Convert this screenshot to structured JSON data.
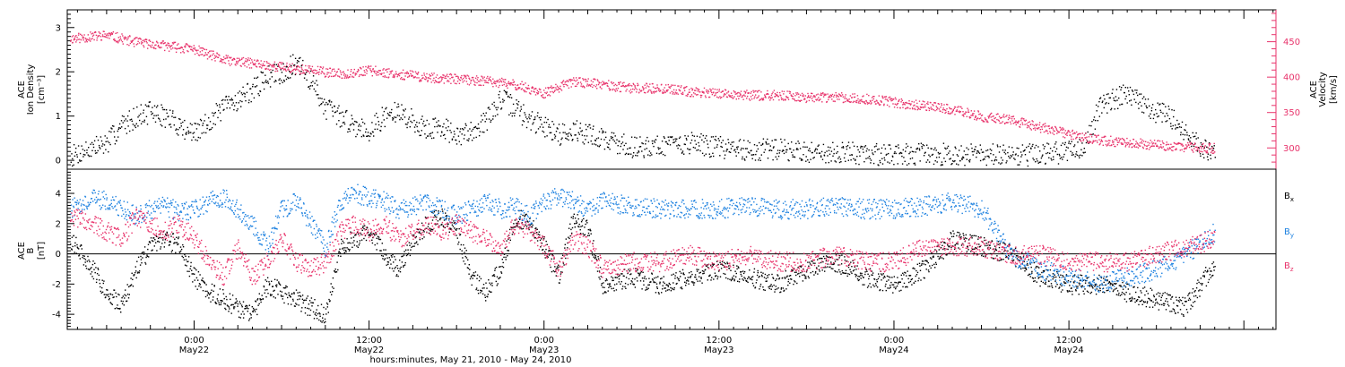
{
  "chart_data": [
    {
      "type": "scatter",
      "panel": "upper",
      "title": "",
      "left_axis": {
        "label_lines": [
          "ACE",
          "Ion Density"
        ],
        "unit": "[cm⁻³]",
        "ylim": [
          -0.2,
          3.4
        ],
        "ticks": [
          "0",
          "1",
          "2",
          "3"
        ],
        "color": "#000000"
      },
      "right_axis": {
        "label_lines": [
          "ACE",
          "Velocity"
        ],
        "unit": "[km/s]",
        "ylim": [
          270,
          495
        ],
        "ticks": [
          "300",
          "350",
          "400",
          "450"
        ],
        "color": "#e8336b"
      },
      "series": [
        {
          "axis": "left",
          "color": "#000000",
          "x": [
            -8.5,
            -7,
            -6,
            -5,
            -4,
            -3,
            -2,
            -1,
            0,
            1,
            2,
            3,
            4,
            5,
            6,
            7,
            8,
            9,
            10,
            11,
            12,
            13,
            14,
            15,
            16,
            17,
            18,
            19,
            20,
            21,
            22,
            23,
            24,
            25,
            26,
            27,
            28,
            30,
            32,
            34,
            36,
            38,
            40,
            42,
            44,
            46,
            48,
            50,
            52,
            54,
            56,
            58,
            60,
            61,
            62,
            63,
            64,
            65,
            66,
            67,
            68,
            69,
            70
          ],
          "values": [
            0.1,
            0.3,
            0.4,
            0.8,
            1.0,
            1.1,
            1.0,
            0.8,
            0.6,
            0.9,
            1.2,
            1.4,
            1.6,
            1.9,
            2.0,
            2.2,
            1.8,
            1.2,
            1.0,
            0.8,
            0.7,
            1.0,
            1.1,
            0.9,
            0.7,
            0.8,
            0.5,
            0.7,
            0.9,
            1.4,
            1.2,
            0.9,
            0.8,
            0.6,
            0.7,
            0.6,
            0.5,
            0.3,
            0.35,
            0.4,
            0.3,
            0.25,
            0.25,
            0.2,
            0.2,
            0.15,
            0.15,
            0.15,
            0.15,
            0.15,
            0.1,
            0.15,
            0.2,
            0.3,
            1.2,
            1.4,
            1.5,
            1.3,
            1.1,
            1.0,
            0.6,
            0.3,
            0.2
          ]
        },
        {
          "axis": "right",
          "color": "#e8336b",
          "x": [
            -8.5,
            -6,
            -4,
            -2,
            0,
            2,
            4,
            6,
            8,
            10,
            12,
            14,
            16,
            18,
            20,
            22,
            24,
            26,
            28,
            30,
            32,
            34,
            36,
            38,
            40,
            42,
            44,
            46,
            48,
            50,
            52,
            54,
            56,
            58,
            60,
            62,
            64,
            66,
            68,
            70
          ],
          "values": [
            455,
            460,
            450,
            445,
            440,
            425,
            420,
            415,
            410,
            405,
            410,
            405,
            400,
            398,
            395,
            390,
            378,
            395,
            390,
            385,
            385,
            380,
            378,
            375,
            375,
            372,
            372,
            370,
            365,
            360,
            355,
            345,
            340,
            330,
            320,
            312,
            308,
            305,
            302,
            300
          ]
        }
      ]
    },
    {
      "type": "scatter",
      "panel": "lower",
      "title": "",
      "left_axis": {
        "label_lines": [
          "ACE",
          "B"
        ],
        "unit": "[nT]",
        "ylim": [
          -5.0,
          5.6
        ],
        "ticks": [
          "-4",
          "-2",
          "0",
          "2",
          "4"
        ],
        "color": "#000000"
      },
      "legend_position": "right",
      "series": [
        {
          "name": "Bx",
          "label_main": "B",
          "label_sub": "x",
          "color": "#000000",
          "x": [
            -8.5,
            -7,
            -6,
            -5,
            -4,
            -3,
            -2,
            -1,
            0,
            1,
            2,
            3,
            4,
            5,
            6,
            7,
            8,
            9,
            10,
            11,
            12,
            13,
            14,
            15,
            16,
            17,
            18,
            19,
            20,
            21,
            22,
            23,
            24,
            25,
            26,
            27,
            28,
            30,
            32,
            34,
            36,
            38,
            40,
            42,
            44,
            46,
            48,
            50,
            52,
            54,
            56,
            58,
            60,
            62,
            64,
            66,
            68,
            70
          ],
          "values": [
            1.0,
            -1.0,
            -2.5,
            -3.5,
            -1.0,
            0.5,
            1.0,
            0.5,
            -1.5,
            -2.5,
            -3.0,
            -3.5,
            -4.0,
            -2.0,
            -2.5,
            -3.0,
            -3.5,
            -4.0,
            0.5,
            1.0,
            1.5,
            0.0,
            -1.0,
            1.0,
            2.0,
            2.5,
            1.5,
            -1.5,
            -2.5,
            -1.0,
            2.5,
            2.0,
            0.5,
            -1.5,
            2.5,
            1.5,
            -2.0,
            -1.5,
            -2.0,
            -1.5,
            -1.0,
            -1.5,
            -2.0,
            -1.0,
            -0.5,
            -1.5,
            -2.0,
            -1.0,
            1.0,
            0.5,
            0.0,
            -1.5,
            -2.0,
            -2.0,
            -2.5,
            -3.0,
            -3.5,
            -0.5
          ]
        },
        {
          "name": "By",
          "label_main": "B",
          "label_sub": "y",
          "color": "#1e82e0",
          "x": [
            -8.5,
            -7,
            -6,
            -5,
            -4,
            -3,
            -2,
            -1,
            0,
            1,
            2,
            3,
            4,
            5,
            6,
            7,
            8,
            9,
            10,
            11,
            12,
            13,
            14,
            15,
            16,
            17,
            18,
            19,
            20,
            21,
            22,
            23,
            24,
            25,
            26,
            27,
            28,
            30,
            32,
            34,
            36,
            38,
            40,
            42,
            44,
            46,
            48,
            50,
            52,
            54,
            56,
            58,
            60,
            62,
            64,
            66,
            68,
            70
          ],
          "values": [
            3.0,
            3.8,
            3.5,
            3.0,
            2.5,
            3.0,
            3.2,
            2.8,
            3.0,
            3.5,
            3.8,
            3.0,
            2.0,
            0.5,
            3.0,
            3.5,
            2.0,
            0.5,
            3.5,
            4.0,
            3.8,
            3.5,
            3.0,
            3.2,
            3.5,
            3.0,
            2.5,
            3.0,
            3.5,
            3.0,
            3.2,
            2.5,
            3.5,
            3.8,
            3.5,
            3.0,
            3.5,
            3.2,
            3.0,
            3.0,
            3.0,
            3.2,
            3.0,
            3.0,
            3.2,
            3.0,
            3.0,
            3.2,
            3.5,
            3.0,
            0.0,
            -1.0,
            -1.5,
            -2.0,
            -1.5,
            -1.0,
            0.0,
            1.5
          ]
        },
        {
          "name": "Bz",
          "label_main": "B",
          "label_sub": "z",
          "color": "#e8336b",
          "x": [
            -8.5,
            -7,
            -6,
            -5,
            -4,
            -3,
            -2,
            -1,
            0,
            1,
            2,
            3,
            4,
            5,
            6,
            7,
            8,
            9,
            10,
            11,
            12,
            13,
            14,
            15,
            16,
            17,
            18,
            19,
            20,
            21,
            22,
            23,
            24,
            25,
            26,
            27,
            28,
            30,
            32,
            34,
            36,
            38,
            40,
            42,
            44,
            46,
            48,
            50,
            52,
            54,
            56,
            58,
            60,
            62,
            64,
            66,
            68,
            70
          ],
          "values": [
            2.5,
            2.0,
            1.5,
            1.0,
            2.5,
            2.0,
            1.5,
            2.0,
            1.0,
            -0.5,
            -1.5,
            0.5,
            -1.5,
            -0.5,
            1.0,
            -0.5,
            -1.0,
            -0.5,
            1.5,
            2.0,
            1.5,
            2.0,
            1.0,
            1.5,
            2.0,
            1.5,
            2.0,
            1.5,
            1.0,
            0.5,
            2.0,
            1.5,
            0.5,
            -1.0,
            1.0,
            0.5,
            -1.0,
            -0.5,
            -0.5,
            0.0,
            -0.5,
            0.0,
            -0.5,
            -0.5,
            0.0,
            -0.5,
            -0.5,
            0.5,
            0.5,
            0.5,
            0.0,
            0.0,
            -0.5,
            -0.5,
            -0.5,
            0.0,
            0.5,
            1.0
          ]
        }
      ]
    }
  ],
  "x_axis": {
    "range": [
      -8.7,
      74.2
    ],
    "ticks": [
      {
        "x": 0,
        "time": "0:00",
        "date": "May22"
      },
      {
        "x": 12,
        "time": "12:00",
        "date": "May22"
      },
      {
        "x": 24,
        "time": "0:00",
        "date": "May23"
      },
      {
        "x": 36,
        "time": "12:00",
        "date": "May23"
      },
      {
        "x": 48,
        "time": "0:00",
        "date": "May24"
      },
      {
        "x": 60,
        "time": "12:00",
        "date": "May24"
      }
    ],
    "label": "hours:minutes, May 21, 2010 - May 24, 2010"
  }
}
